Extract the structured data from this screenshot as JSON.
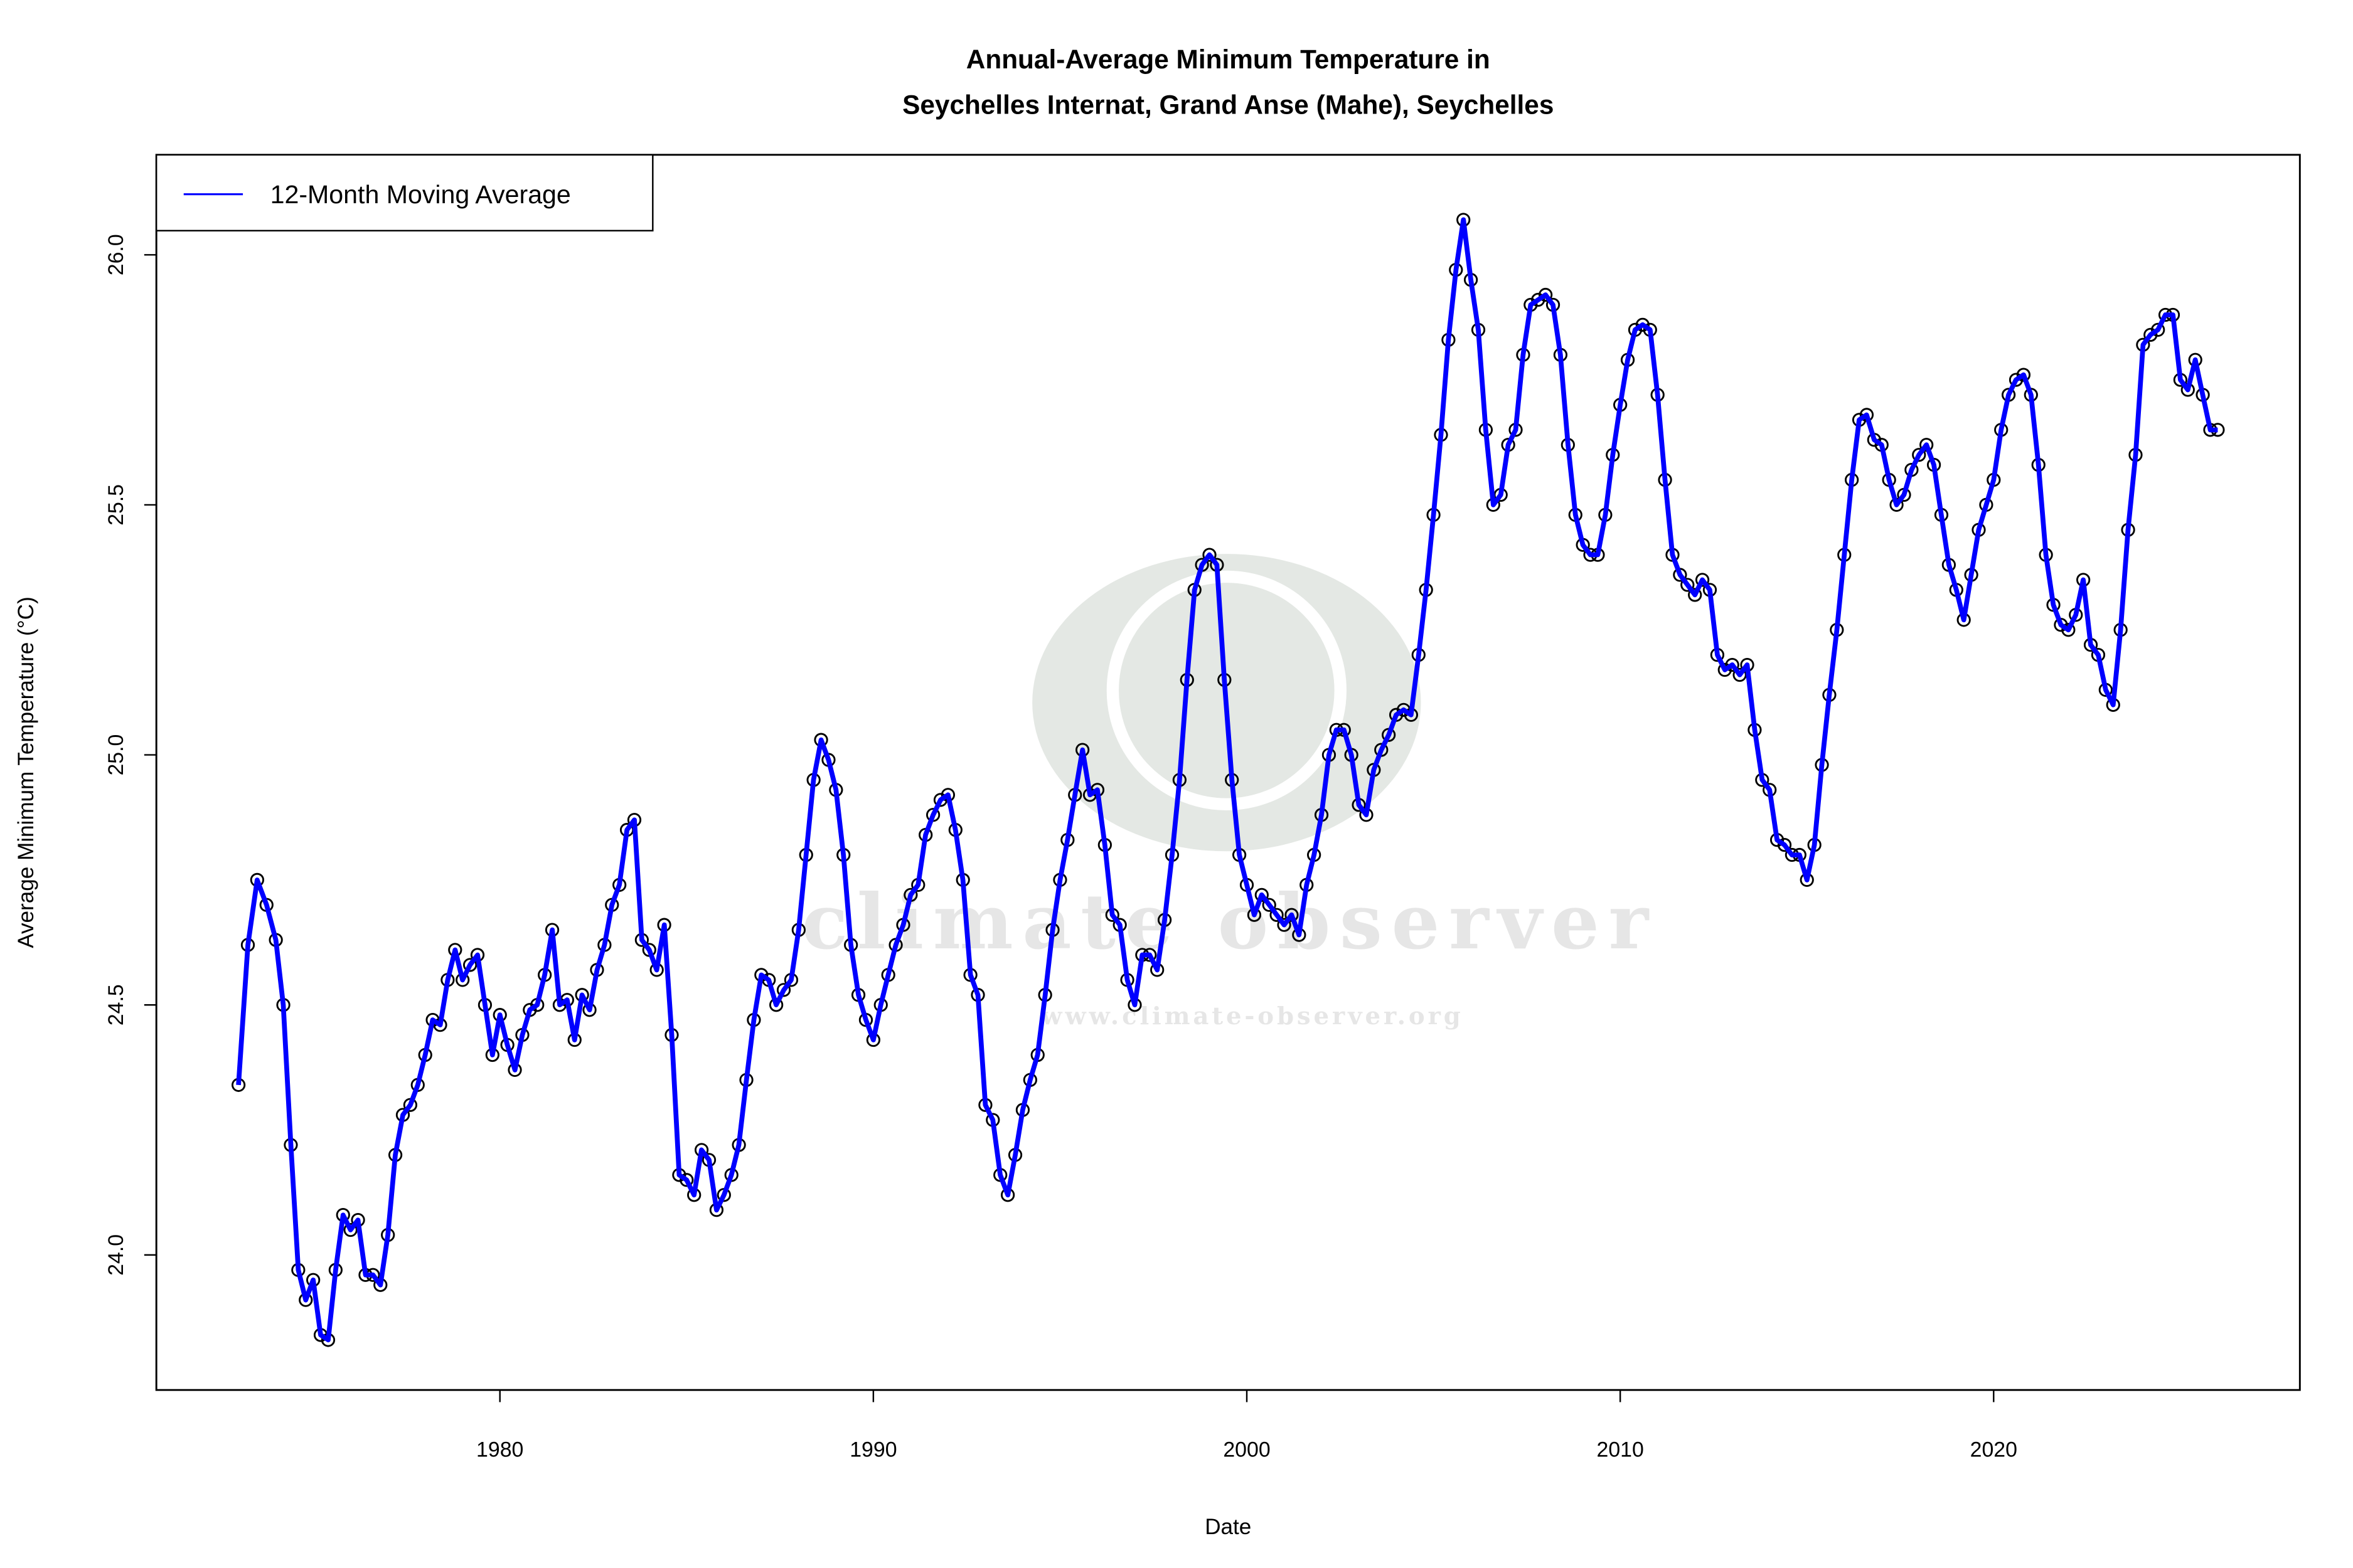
{
  "chart_data": {
    "type": "line",
    "title": "Annual-Average Minimum Temperature in",
    "subtitle": "Seychelles Internat, Grand Anse (Mahe), Seychelles",
    "xlabel": "Date",
    "ylabel": "Average Minimum Temperature (°C)",
    "xlim": [
      1970.8,
      2028.2
    ],
    "ylim": [
      23.73,
      26.2
    ],
    "xticks": [
      1980,
      1990,
      2000,
      2010,
      2020
    ],
    "yticks": [
      "24.0",
      "24.5",
      "25.0",
      "25.5",
      "26.0"
    ],
    "grid": false,
    "legend": {
      "position": "top-left",
      "entries": [
        "12-Month Moving Average"
      ]
    },
    "colors": {
      "line": "#0000ff",
      "points": "#000000"
    },
    "watermark": {
      "text": "climate observer",
      "url": "www.climate-observer.org"
    },
    "series": [
      {
        "name": "12-Month Moving Average",
        "x": [
          1973.0,
          1973.25,
          1973.5,
          1973.75,
          1974.0,
          1974.2,
          1974.4,
          1974.6,
          1974.8,
          1975.0,
          1975.2,
          1975.4,
          1975.6,
          1975.8,
          1976.0,
          1976.2,
          1976.4,
          1976.6,
          1976.8,
          1977.0,
          1977.2,
          1977.4,
          1977.6,
          1977.8,
          1978.0,
          1978.2,
          1978.4,
          1978.6,
          1978.8,
          1979.0,
          1979.2,
          1979.4,
          1979.6,
          1979.8,
          1980.0,
          1980.2,
          1980.4,
          1980.6,
          1980.8,
          1981.0,
          1981.2,
          1981.4,
          1981.6,
          1981.8,
          1982.0,
          1982.2,
          1982.4,
          1982.6,
          1982.8,
          1983.0,
          1983.2,
          1983.4,
          1983.6,
          1983.8,
          1984.0,
          1984.2,
          1984.4,
          1984.6,
          1984.8,
          1985.0,
          1985.2,
          1985.4,
          1985.6,
          1985.8,
          1986.0,
          1986.2,
          1986.4,
          1986.6,
          1986.8,
          1987.0,
          1987.2,
          1987.4,
          1987.6,
          1987.8,
          1988.0,
          1988.2,
          1988.4,
          1988.6,
          1988.8,
          1989.0,
          1989.2,
          1989.4,
          1989.6,
          1989.8,
          1990.0,
          1990.2,
          1990.4,
          1990.6,
          1990.8,
          1991.0,
          1991.2,
          1991.4,
          1991.6,
          1991.8,
          1992.0,
          1992.2,
          1992.4,
          1992.6,
          1992.8,
          1993.0,
          1993.2,
          1993.4,
          1993.6,
          1993.8,
          1994.0,
          1994.2,
          1994.4,
          1994.6,
          1994.8,
          1995.0,
          1995.2,
          1995.4,
          1995.6,
          1995.8,
          1996.0,
          1996.2,
          1996.4,
          1996.6,
          1996.8,
          1997.0,
          1997.2,
          1997.4,
          1997.6,
          1997.8,
          1998.0,
          1998.2,
          1998.4,
          1998.6,
          1998.8,
          1999.0,
          1999.2,
          1999.4,
          1999.6,
          1999.8,
          2000.0,
          2000.2,
          2000.4,
          2000.6,
          2000.8,
          2001.0,
          2001.2,
          2001.4,
          2001.6,
          2001.8,
          2002.0,
          2002.2,
          2002.4,
          2002.6,
          2002.8,
          2003.0,
          2003.2,
          2003.4,
          2003.6,
          2003.8,
          2004.0,
          2004.2,
          2004.4,
          2004.6,
          2004.8,
          2005.0,
          2005.2,
          2005.4,
          2005.6,
          2005.8,
          2006.0,
          2006.2,
          2006.4,
          2006.6,
          2006.8,
          2007.0,
          2007.2,
          2007.4,
          2007.6,
          2007.8,
          2008.0,
          2008.2,
          2008.4,
          2008.6,
          2008.8,
          2009.0,
          2009.2,
          2009.4,
          2009.6,
          2009.8,
          2010.0,
          2010.2,
          2010.4,
          2010.6,
          2010.8,
          2011.0,
          2011.2,
          2011.4,
          2011.6,
          2011.8,
          2012.0,
          2012.2,
          2012.4,
          2012.6,
          2012.8,
          2013.0,
          2013.2,
          2013.4,
          2013.6,
          2013.8,
          2014.0,
          2014.2,
          2014.4,
          2014.6,
          2014.8,
          2015.0,
          2015.2,
          2015.4,
          2015.6,
          2015.8,
          2016.0,
          2016.2,
          2016.4,
          2016.6,
          2016.8,
          2017.0,
          2017.2,
          2017.4,
          2017.6,
          2017.8,
          2018.0,
          2018.2,
          2018.4,
          2018.6,
          2018.8,
          2019.0,
          2019.2,
          2019.4,
          2019.6,
          2019.8,
          2020.0,
          2020.2,
          2020.4,
          2020.6,
          2020.8,
          2021.0,
          2021.2,
          2021.4,
          2021.6,
          2021.8,
          2022.0,
          2022.2,
          2022.4,
          2022.6,
          2022.8,
          2023.0,
          2023.2,
          2023.4,
          2023.6,
          2023.8,
          2024.0,
          2024.2,
          2024.4,
          2024.6,
          2024.8,
          2025.0,
          2025.2,
          2025.4,
          2025.6,
          2025.8,
          2026.0
        ],
        "y": [
          24.34,
          24.62,
          24.75,
          24.7,
          24.63,
          24.5,
          24.22,
          23.97,
          23.91,
          23.95,
          23.84,
          23.83,
          23.97,
          24.08,
          24.05,
          24.07,
          23.96,
          23.96,
          23.94,
          24.04,
          24.2,
          24.28,
          24.3,
          24.34,
          24.4,
          24.47,
          24.46,
          24.55,
          24.61,
          24.55,
          24.58,
          24.6,
          24.5,
          24.4,
          24.48,
          24.42,
          24.37,
          24.44,
          24.49,
          24.5,
          24.56,
          24.65,
          24.5,
          24.51,
          24.43,
          24.52,
          24.49,
          24.57,
          24.62,
          24.7,
          24.74,
          24.85,
          24.87,
          24.63,
          24.61,
          24.57,
          24.66,
          24.44,
          24.16,
          24.15,
          24.12,
          24.21,
          24.19,
          24.09,
          24.12,
          24.16,
          24.22,
          24.35,
          24.47,
          24.56,
          24.55,
          24.5,
          24.53,
          24.55,
          24.65,
          24.8,
          24.95,
          25.03,
          24.99,
          24.93,
          24.8,
          24.62,
          24.52,
          24.47,
          24.43,
          24.5,
          24.56,
          24.62,
          24.66,
          24.72,
          24.74,
          24.84,
          24.88,
          24.91,
          24.92,
          24.85,
          24.75,
          24.56,
          24.52,
          24.3,
          24.27,
          24.16,
          24.12,
          24.2,
          24.29,
          24.35,
          24.4,
          24.52,
          24.65,
          24.75,
          24.83,
          24.92,
          25.01,
          24.92,
          24.93,
          24.82,
          24.68,
          24.66,
          24.55,
          24.5,
          24.6,
          24.6,
          24.57,
          24.67,
          24.8,
          24.95,
          25.15,
          25.33,
          25.38,
          25.4,
          25.38,
          25.15,
          24.95,
          24.8,
          24.74,
          24.68,
          24.72,
          24.7,
          24.68,
          24.66,
          24.68,
          24.64,
          24.74,
          24.8,
          24.88,
          25.0,
          25.05,
          25.05,
          25.0,
          24.9,
          24.88,
          24.97,
          25.01,
          25.04,
          25.08,
          25.09,
          25.08,
          25.2,
          25.33,
          25.48,
          25.64,
          25.83,
          25.97,
          26.07,
          25.95,
          25.85,
          25.65,
          25.5,
          25.52,
          25.62,
          25.65,
          25.8,
          25.9,
          25.91,
          25.92,
          25.9,
          25.8,
          25.62,
          25.48,
          25.42,
          25.4,
          25.4,
          25.48,
          25.6,
          25.7,
          25.79,
          25.85,
          25.86,
          25.85,
          25.72,
          25.55,
          25.4,
          25.36,
          25.34,
          25.32,
          25.35,
          25.33,
          25.2,
          25.17,
          25.18,
          25.16,
          25.18,
          25.05,
          24.95,
          24.93,
          24.83,
          24.82,
          24.8,
          24.8,
          24.75,
          24.82,
          24.98,
          25.12,
          25.25,
          25.4,
          25.55,
          25.67,
          25.68,
          25.63,
          25.62,
          25.55,
          25.5,
          25.52,
          25.57,
          25.6,
          25.62,
          25.58,
          25.48,
          25.38,
          25.33,
          25.27,
          25.36,
          25.45,
          25.5,
          25.55,
          25.65,
          25.72,
          25.75,
          25.76,
          25.72,
          25.58,
          25.4,
          25.3,
          25.26,
          25.25,
          25.28,
          25.35,
          25.22,
          25.2,
          25.13,
          25.1,
          25.25,
          25.45,
          25.6,
          25.82,
          25.84,
          25.85,
          25.88,
          25.88,
          25.75,
          25.73,
          25.79,
          25.72,
          25.65,
          25.65
        ]
      }
    ]
  }
}
